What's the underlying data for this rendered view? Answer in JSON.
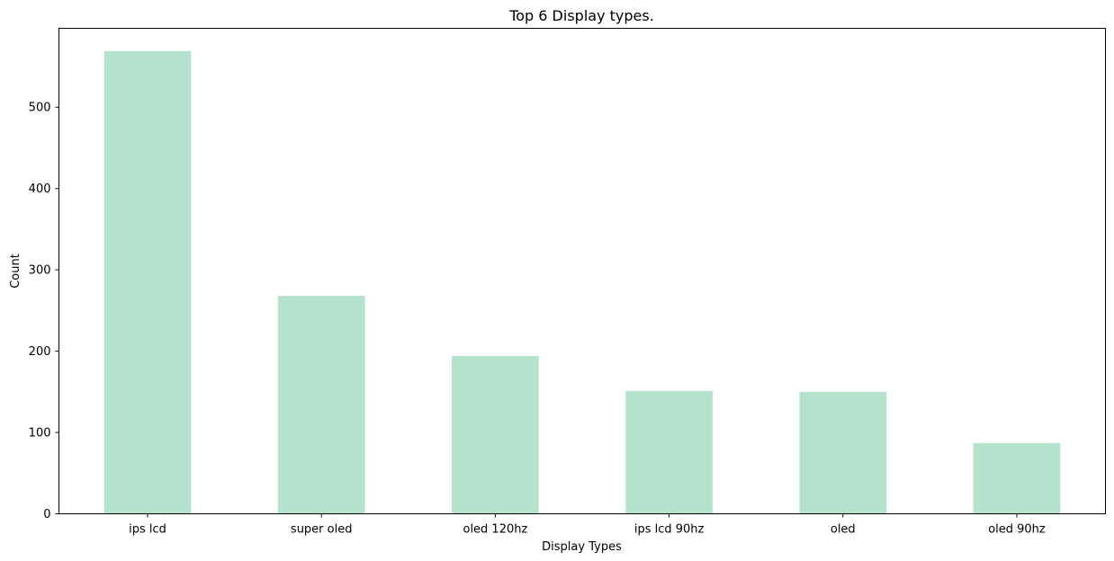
{
  "chart_data": {
    "type": "bar",
    "title": "Top 6 Display types.",
    "xlabel": "Display Types",
    "ylabel": "Count",
    "categories": [
      "ips lcd",
      "super oled",
      "oled 120hz",
      "ips lcd 90hz",
      "oled",
      "oled 90hz"
    ],
    "values": [
      569,
      268,
      194,
      151,
      150,
      87
    ],
    "ylim": [
      0,
      597
    ],
    "yticks": [
      0,
      100,
      200,
      300,
      400,
      500
    ],
    "bar_color": "#b3e2cd",
    "grid": false,
    "legend": "none"
  }
}
